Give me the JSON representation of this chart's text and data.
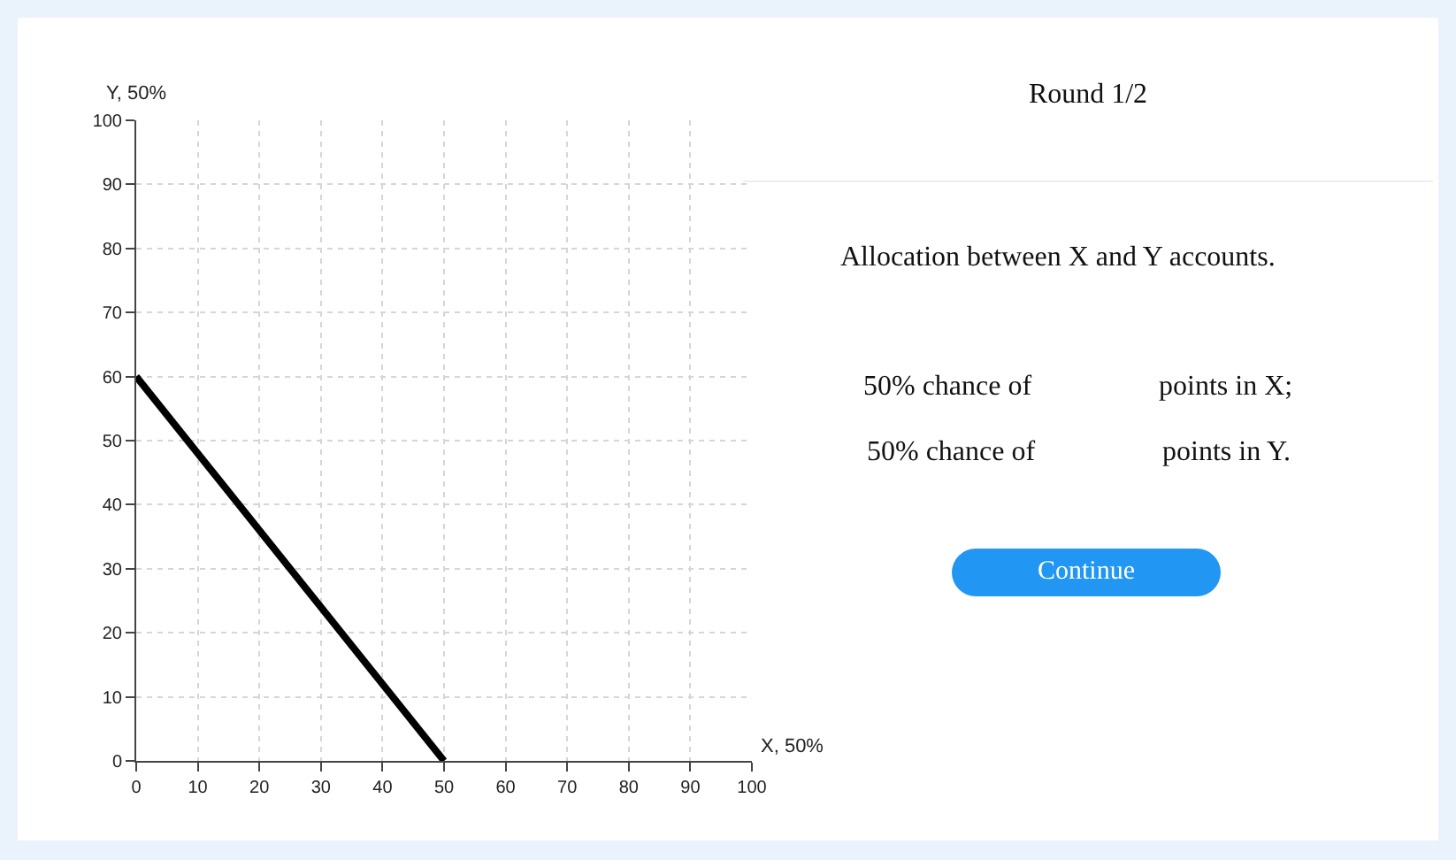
{
  "chart_data": [
    {
      "type": "line",
      "xlabel": "X, 50%",
      "ylabel": "Y, 50%",
      "x": [
        0,
        50
      ],
      "series": [
        {
          "color": "#000000",
          "values": [
            60,
            0
          ]
        }
      ],
      "xlim": [
        0,
        100
      ],
      "xticks": [
        0,
        10,
        20,
        30,
        40,
        50,
        60,
        70,
        80,
        90,
        100
      ],
      "ylim": [
        0,
        100
      ],
      "yticks": [
        0,
        10,
        20,
        30,
        40,
        50,
        60,
        70,
        80,
        90,
        100
      ],
      "grid": true,
      "marker": "none",
      "line_style": "solid"
    },
    {
      "type": "other",
      "title": "Round 1/2",
      "annotations": [
        "Allocation between X and Y accounts.",
        "50% chance of",
        "points in X;",
        "50% chance of",
        "points in Y.",
        "Continue"
      ]
    }
  ]
}
